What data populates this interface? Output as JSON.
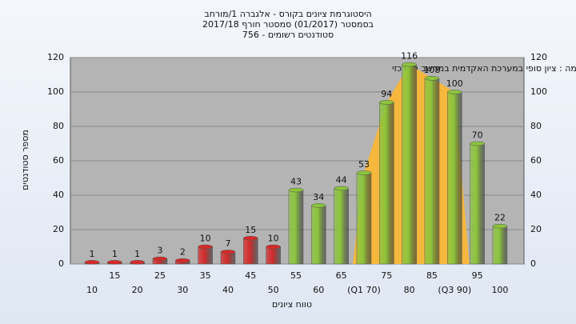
{
  "chart_data": {
    "type": "bar",
    "title": "היסטוגרמת ציונים בקורס - אלגברה 1/מורחב",
    "subtitle": "בסמסטר (01/2017) סמסטר חורף 2017/18",
    "subtitle2": "סטודנטים רשומים - 756",
    "annotation": "במשימה : ציון סופי במערכת האקדמית במחשב המרכזי",
    "xlabel": "טווח ציונים",
    "ylabel": "מספר סטודנטים",
    "categories": [
      "10",
      "15",
      "20",
      "25",
      "30",
      "35",
      "40",
      "45",
      "50",
      "55",
      "60",
      "65",
      "(Q1 70)",
      "75",
      "80",
      "85",
      "(Q3 90)",
      "95",
      "100"
    ],
    "values": [
      1,
      1,
      1,
      3,
      2,
      10,
      7,
      15,
      10,
      43,
      34,
      44,
      53,
      94,
      116,
      108,
      100,
      70,
      22
    ],
    "colors": [
      "#d42a2a",
      "#d42a2a",
      "#d42a2a",
      "#d42a2a",
      "#d42a2a",
      "#d42a2a",
      "#d42a2a",
      "#d42a2a",
      "#d42a2a",
      "#8cc43c",
      "#8cc43c",
      "#8cc43c",
      "#8cc43c",
      "#8cc43c",
      "#8cc43c",
      "#8cc43c",
      "#8cc43c",
      "#8cc43c",
      "#8cc43c"
    ],
    "area_color": "#f5b83c",
    "ylim": [
      0,
      120
    ],
    "yticks": [
      0,
      20,
      40,
      60,
      80,
      100,
      120
    ],
    "grid": true
  }
}
